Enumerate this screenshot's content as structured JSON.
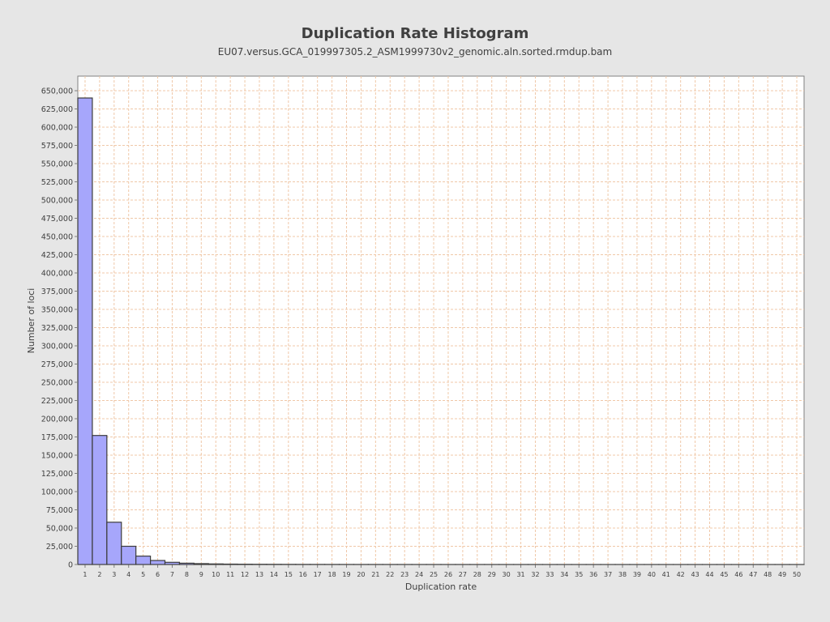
{
  "chart_data": {
    "type": "bar",
    "title": "Duplication Rate Histogram",
    "subtitle": "EU07.versus.GCA_019997305.2_ASM1999730v2_genomic.aln.sorted.rmdup.bam",
    "xlabel": "Duplication rate",
    "ylabel": "Number of loci",
    "grid": true,
    "xlim": [
      0.5,
      50.5
    ],
    "ylim": [
      0,
      670000
    ],
    "y_tick_step": 25000,
    "categories": [
      1,
      2,
      3,
      4,
      5,
      6,
      7,
      8,
      9,
      10,
      11,
      12,
      13,
      14,
      15,
      16,
      17,
      18,
      19,
      20,
      21,
      22,
      23,
      24,
      25,
      26,
      27,
      28,
      29,
      30,
      31,
      32,
      33,
      34,
      35,
      36,
      37,
      38,
      39,
      40,
      41,
      42,
      43,
      44,
      45,
      46,
      47,
      48,
      49,
      50
    ],
    "values": [
      640000,
      177000,
      58000,
      25000,
      11500,
      5500,
      3000,
      1800,
      1200,
      800,
      550,
      400,
      300,
      250,
      200,
      160,
      130,
      110,
      90,
      80,
      70,
      60,
      50,
      45,
      40,
      35,
      30,
      28,
      25,
      22,
      20,
      18,
      16,
      15,
      14,
      13,
      12,
      11,
      10,
      9,
      8,
      8,
      7,
      7,
      6,
      6,
      5,
      5,
      5,
      4
    ],
    "colors": {
      "bar_fill": "#a6a6fb",
      "bar_stroke": "#3c3c3c",
      "grid": "#f0c8a8",
      "plot_bg": "#ffffff",
      "page_bg": "#e6e6e6",
      "axis": "#808080",
      "text": "#404040"
    }
  }
}
